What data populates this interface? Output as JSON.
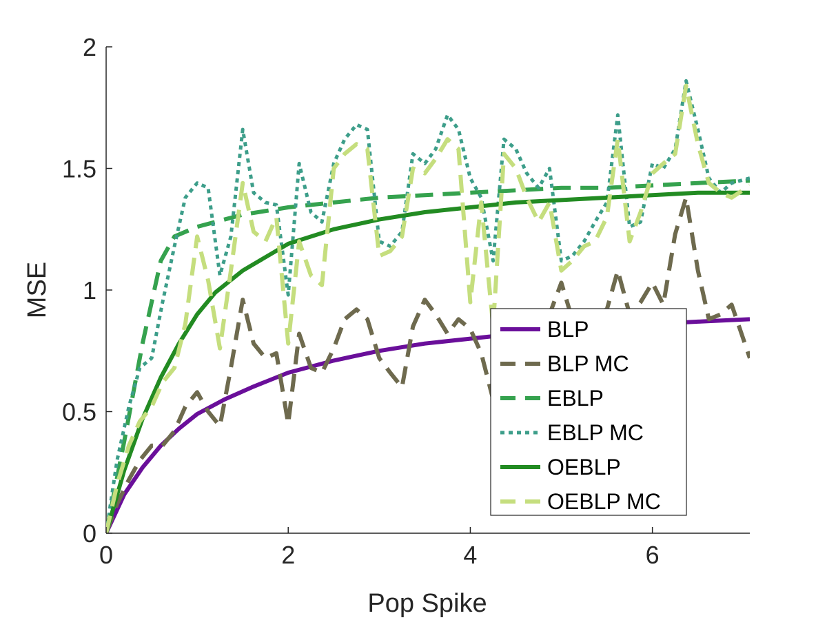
{
  "chart_data": {
    "type": "line",
    "title": "",
    "xlabel": "Pop Spike",
    "ylabel": "MSE",
    "xlim": [
      0,
      7.07
    ],
    "ylim": [
      0,
      2
    ],
    "xticks": [
      0,
      2,
      4,
      6
    ],
    "yticks": [
      0,
      0.5,
      1,
      1.5,
      2
    ],
    "xtick_labels": [
      "0",
      "2",
      "4",
      "6"
    ],
    "ytick_labels": [
      "0",
      "0.5",
      "1",
      "1.5",
      "2"
    ],
    "grid": false,
    "legend_position": "lower-right",
    "series": [
      {
        "name": "BLP",
        "color": "#6a0f9a",
        "style": "solid",
        "x": [
          0,
          0.2,
          0.4,
          0.6,
          0.8,
          1.0,
          1.3,
          1.6,
          2.0,
          2.5,
          3.0,
          3.5,
          4.0,
          4.5,
          5.0,
          5.5,
          6.0,
          6.5,
          7.07
        ],
        "y": [
          0,
          0.16,
          0.27,
          0.36,
          0.43,
          0.49,
          0.55,
          0.6,
          0.66,
          0.71,
          0.75,
          0.78,
          0.8,
          0.82,
          0.84,
          0.85,
          0.86,
          0.87,
          0.88
        ]
      },
      {
        "name": "BLP MC",
        "color": "#6e6a4e",
        "style": "dashed",
        "x": [
          0,
          0.12,
          0.25,
          0.37,
          0.5,
          0.62,
          0.75,
          0.87,
          1.0,
          1.12,
          1.25,
          1.37,
          1.5,
          1.62,
          1.75,
          1.87,
          2.0,
          2.12,
          2.25,
          2.37,
          2.5,
          2.62,
          2.75,
          2.87,
          3.0,
          3.12,
          3.25,
          3.37,
          3.5,
          3.62,
          3.75,
          3.87,
          4.0,
          4.12,
          4.25,
          4.37,
          4.5,
          4.62,
          4.75,
          4.87,
          5.0,
          5.12,
          5.25,
          5.37,
          5.5,
          5.62,
          5.75,
          5.87,
          6.0,
          6.12,
          6.25,
          6.37,
          6.5,
          6.62,
          6.75,
          6.87,
          7.07
        ],
        "y": [
          0,
          0.12,
          0.22,
          0.3,
          0.36,
          0.36,
          0.42,
          0.52,
          0.58,
          0.5,
          0.44,
          0.68,
          0.96,
          0.78,
          0.72,
          0.74,
          0.45,
          0.82,
          0.68,
          0.66,
          0.76,
          0.88,
          0.92,
          0.88,
          0.72,
          0.66,
          0.6,
          0.85,
          0.96,
          0.9,
          0.82,
          0.88,
          0.84,
          0.74,
          0.55,
          0.86,
          0.82,
          0.86,
          0.56,
          0.9,
          1.03,
          0.88,
          0.72,
          0.9,
          0.92,
          1.08,
          0.9,
          0.95,
          1.03,
          0.94,
          1.23,
          1.38,
          1.08,
          0.88,
          0.9,
          0.94,
          0.72
        ]
      },
      {
        "name": "EBLP",
        "color": "#35a24e",
        "style": "dashed",
        "x": [
          0,
          0.2,
          0.4,
          0.6,
          0.75,
          1.0,
          1.5,
          2.0,
          2.5,
          3.0,
          3.5,
          4.0,
          4.5,
          5.0,
          5.5,
          6.0,
          6.5,
          7.07
        ],
        "y": [
          0,
          0.38,
          0.78,
          1.12,
          1.22,
          1.26,
          1.31,
          1.34,
          1.36,
          1.38,
          1.39,
          1.4,
          1.41,
          1.42,
          1.42,
          1.43,
          1.44,
          1.45
        ]
      },
      {
        "name": "EBLP MC",
        "color": "#3d9e8a",
        "style": "dotted",
        "x": [
          0,
          0.12,
          0.25,
          0.37,
          0.5,
          0.62,
          0.75,
          0.87,
          1.0,
          1.12,
          1.25,
          1.37,
          1.5,
          1.62,
          1.75,
          1.87,
          2.0,
          2.12,
          2.25,
          2.37,
          2.5,
          2.62,
          2.75,
          2.87,
          3.0,
          3.12,
          3.25,
          3.37,
          3.5,
          3.62,
          3.75,
          3.87,
          4.0,
          4.12,
          4.25,
          4.37,
          4.5,
          4.62,
          4.75,
          4.87,
          5.0,
          5.12,
          5.25,
          5.37,
          5.5,
          5.62,
          5.75,
          5.87,
          6.0,
          6.12,
          6.25,
          6.37,
          6.5,
          6.62,
          6.75,
          6.87,
          7.07
        ],
        "y": [
          0,
          0.3,
          0.52,
          0.68,
          0.72,
          0.95,
          1.18,
          1.38,
          1.44,
          1.42,
          1.06,
          1.22,
          1.66,
          1.4,
          1.36,
          1.35,
          0.98,
          1.52,
          1.32,
          1.28,
          1.52,
          1.62,
          1.68,
          1.66,
          1.2,
          1.18,
          1.24,
          1.56,
          1.52,
          1.58,
          1.72,
          1.66,
          1.46,
          1.38,
          1.12,
          1.62,
          1.58,
          1.48,
          1.42,
          1.5,
          1.12,
          1.14,
          1.2,
          1.28,
          1.36,
          1.72,
          1.26,
          1.28,
          1.52,
          1.5,
          1.58,
          1.86,
          1.66,
          1.46,
          1.4,
          1.44,
          1.46
        ]
      },
      {
        "name": "OEBLP",
        "color": "#228b22",
        "style": "solid",
        "x": [
          0,
          0.2,
          0.4,
          0.6,
          0.8,
          1.0,
          1.2,
          1.5,
          2.0,
          2.5,
          3.0,
          3.5,
          4.0,
          4.5,
          5.0,
          5.5,
          6.0,
          6.5,
          7.07
        ],
        "y": [
          0,
          0.26,
          0.47,
          0.64,
          0.78,
          0.9,
          0.99,
          1.08,
          1.19,
          1.25,
          1.29,
          1.32,
          1.34,
          1.36,
          1.37,
          1.38,
          1.39,
          1.4,
          1.4
        ]
      },
      {
        "name": "OEBLP MC",
        "color": "#c5de7e",
        "style": "dashed",
        "x": [
          0,
          0.12,
          0.25,
          0.37,
          0.5,
          0.62,
          0.75,
          0.87,
          1.0,
          1.12,
          1.25,
          1.37,
          1.5,
          1.62,
          1.75,
          1.87,
          2.0,
          2.12,
          2.25,
          2.37,
          2.5,
          2.62,
          2.75,
          2.87,
          3.0,
          3.12,
          3.25,
          3.37,
          3.5,
          3.62,
          3.75,
          3.87,
          4.0,
          4.12,
          4.25,
          4.37,
          4.5,
          4.62,
          4.75,
          4.87,
          5.0,
          5.12,
          5.25,
          5.37,
          5.5,
          5.62,
          5.75,
          5.87,
          6.0,
          6.12,
          6.25,
          6.37,
          6.5,
          6.62,
          6.75,
          6.87,
          7.07
        ],
        "y": [
          0,
          0.2,
          0.36,
          0.46,
          0.52,
          0.62,
          0.68,
          0.86,
          1.22,
          1.04,
          0.76,
          1.08,
          1.44,
          1.24,
          1.2,
          1.3,
          0.78,
          1.2,
          1.06,
          1.02,
          1.5,
          1.56,
          1.6,
          1.58,
          1.14,
          1.16,
          1.22,
          1.5,
          1.48,
          1.54,
          1.62,
          1.58,
          0.95,
          1.36,
          0.85,
          1.56,
          1.5,
          1.38,
          1.28,
          1.36,
          1.08,
          1.12,
          1.18,
          1.2,
          1.3,
          1.62,
          1.2,
          1.32,
          1.48,
          1.52,
          1.56,
          1.84,
          1.6,
          1.44,
          1.4,
          1.38,
          1.43
        ]
      }
    ]
  }
}
